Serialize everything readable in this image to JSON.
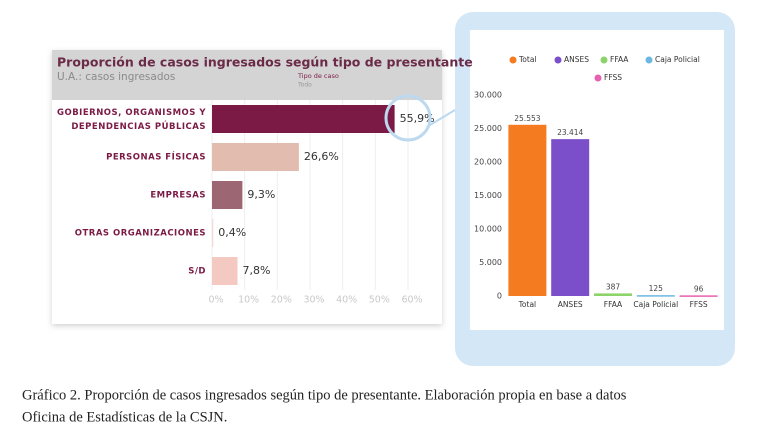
{
  "chart_data": [
    {
      "type": "hbar",
      "title": "Proporción de casos ingresados según tipo de presentante",
      "subtitle": "U.A.: casos ingresados",
      "filter_label": "Tipo de caso",
      "filter_value": "Todo",
      "categories": [
        "GOBIERNOS, ORGANISMOS Y DEPENDENCIAS PÚBLICAS",
        "PERSONAS FÍSICAS",
        "EMPRESAS",
        "OTRAS ORGANIZACIONES",
        "S/D"
      ],
      "values": [
        55.9,
        26.6,
        9.3,
        0.4,
        7.8
      ],
      "value_labels": [
        "55,9%",
        "26,6%",
        "9,3%",
        "0,4%",
        "7,8%"
      ],
      "colors": [
        "#7b1a45",
        "#e2bcae",
        "#9c6672",
        "#f2dcdc",
        "#f4c9c1"
      ],
      "xlim": [
        0,
        60
      ],
      "xticks": [
        {
          "value": 0,
          "label": "0%"
        },
        {
          "value": 10,
          "label": "10%"
        },
        {
          "value": 20,
          "label": "20%"
        },
        {
          "value": 30,
          "label": "30%"
        },
        {
          "value": 40,
          "label": "40%"
        },
        {
          "value": 50,
          "label": "50%"
        },
        {
          "value": 60,
          "label": "60%"
        }
      ],
      "grid": true
    },
    {
      "type": "bar",
      "categories": [
        "Total",
        "ANSES",
        "FFAA",
        "Caja Policial",
        "FFSS"
      ],
      "values": [
        25553,
        23414,
        387,
        125,
        96
      ],
      "value_labels": [
        "25.553",
        "23.414",
        "387",
        "125",
        "96"
      ],
      "colors": [
        "#f47b20",
        "#7b4fc9",
        "#8cd36a",
        "#6bb8e0",
        "#e860b0"
      ],
      "ylim": [
        0,
        30000
      ],
      "yticks": [
        0,
        {
          "value": 5000,
          "label": "5.000"
        },
        {
          "value": 10000,
          "label": "10.000"
        },
        {
          "value": 15000,
          "label": "15.000"
        },
        {
          "value": 20000,
          "label": "20.000"
        },
        {
          "value": 25000,
          "label": "25.000"
        },
        {
          "value": 30000,
          "label": "30.000"
        }
      ],
      "legend": "top"
    }
  ],
  "caption": [
    "Gráfico 2. Proporción de casos ingresados según tipo de presentante. Elaboración propia en base a datos",
    "Oficina de Estadísticas de la CSJN."
  ]
}
